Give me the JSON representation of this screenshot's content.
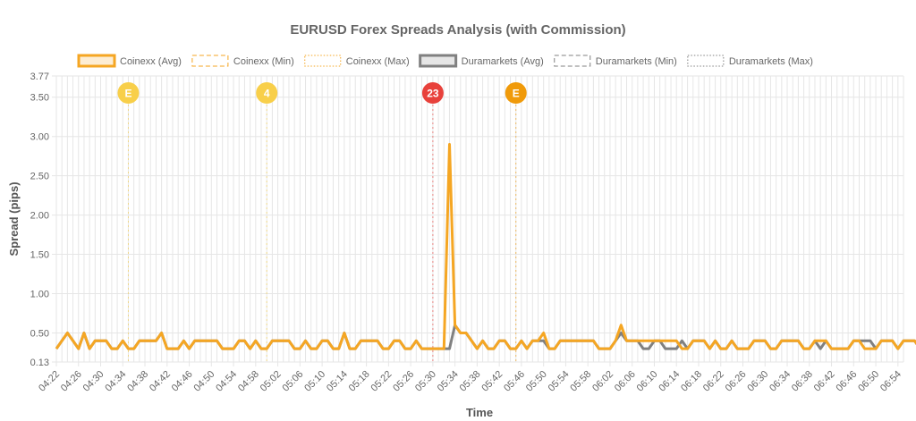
{
  "colors": {
    "coinexx": "#f5a623",
    "duramarkets": "#808080",
    "grid": "#e6e6e6",
    "marker_yellow": "#f8cf4a",
    "marker_red": "#e8413b",
    "marker_orange": "#f09a0a"
  },
  "chart_data": {
    "type": "line",
    "title": "EURUSD Forex Spreads Analysis (with Commission)",
    "xlabel": "Time",
    "ylabel": "Spread (pips)",
    "ylim": [
      0.13,
      3.77
    ],
    "yticks": [
      "0.13",
      "0.50",
      "1.00",
      "1.50",
      "2.00",
      "2.50",
      "3.00",
      "3.50",
      "3.77"
    ],
    "ytick_values": [
      0.13,
      0.5,
      1.0,
      1.5,
      2.0,
      2.5,
      3.0,
      3.5,
      3.77
    ],
    "x_start": "04:22",
    "x_end": "06:55",
    "x_step_minutes": 1,
    "xtick_labels": [
      "04:22",
      "04:26",
      "04:30",
      "04:34",
      "04:38",
      "04:42",
      "04:46",
      "04:50",
      "04:54",
      "04:58",
      "05:02",
      "05:06",
      "05:10",
      "05:14",
      "05:18",
      "05:22",
      "05:26",
      "05:30",
      "05:34",
      "05:38",
      "05:42",
      "05:46",
      "05:50",
      "05:54",
      "05:58",
      "06:02",
      "06:06",
      "06:10",
      "06:14",
      "06:18",
      "06:22",
      "06:26",
      "06:30",
      "06:34",
      "06:38",
      "06:42",
      "06:46",
      "06:50",
      "06:54"
    ],
    "legend": [
      {
        "label": "Coinexx (Avg)",
        "style": "solid",
        "color": "#f5a623"
      },
      {
        "label": "Coinexx (Min)",
        "style": "dashed",
        "color": "#f5a623"
      },
      {
        "label": "Coinexx (Max)",
        "style": "dotted",
        "color": "#f5a623"
      },
      {
        "label": "Duramarkets (Avg)",
        "style": "solid",
        "color": "#808080"
      },
      {
        "label": "Duramarkets (Min)",
        "style": "dashed",
        "color": "#808080"
      },
      {
        "label": "Duramarkets (Max)",
        "style": "dotted",
        "color": "#808080"
      }
    ],
    "series": [
      {
        "name": "Coinexx (Avg)",
        "values": [
          0.3,
          0.4,
          0.5,
          0.4,
          0.3,
          0.5,
          0.3,
          0.4,
          0.4,
          0.4,
          0.3,
          0.3,
          0.4,
          0.3,
          0.3,
          0.4,
          0.4,
          0.4,
          0.4,
          0.5,
          0.3,
          0.3,
          0.3,
          0.4,
          0.3,
          0.4,
          0.4,
          0.4,
          0.4,
          0.4,
          0.3,
          0.3,
          0.3,
          0.4,
          0.4,
          0.3,
          0.4,
          0.3,
          0.3,
          0.4,
          0.4,
          0.4,
          0.4,
          0.3,
          0.3,
          0.4,
          0.3,
          0.3,
          0.4,
          0.4,
          0.3,
          0.3,
          0.5,
          0.3,
          0.3,
          0.4,
          0.4,
          0.4,
          0.4,
          0.3,
          0.3,
          0.4,
          0.4,
          0.3,
          0.3,
          0.4,
          0.3,
          0.3,
          0.3,
          0.3,
          0.3,
          2.9,
          0.6,
          0.5,
          0.5,
          0.4,
          0.3,
          0.4,
          0.3,
          0.3,
          0.4,
          0.4,
          0.3,
          0.3,
          0.4,
          0.3,
          0.4,
          0.4,
          0.5,
          0.3,
          0.3,
          0.4,
          0.4,
          0.4,
          0.4,
          0.4,
          0.4,
          0.4,
          0.3,
          0.3,
          0.3,
          0.4,
          0.6,
          0.4,
          0.4,
          0.4,
          0.4,
          0.4,
          0.4,
          0.4,
          0.4,
          0.4,
          0.4,
          0.3,
          0.3,
          0.4,
          0.4,
          0.4,
          0.3,
          0.4,
          0.3,
          0.3,
          0.4,
          0.3,
          0.3,
          0.3,
          0.4,
          0.4,
          0.4,
          0.3,
          0.3,
          0.4,
          0.4,
          0.4,
          0.4,
          0.3,
          0.3,
          0.4,
          0.4,
          0.4,
          0.3,
          0.3,
          0.3,
          0.3,
          0.4,
          0.4,
          0.3,
          0.3,
          0.3,
          0.4,
          0.4,
          0.4,
          0.3,
          0.4,
          0.4,
          0.4,
          0.3,
          0.4,
          0.3,
          0.3,
          0.3
        ]
      },
      {
        "name": "Duramarkets (Avg)",
        "values": [
          0.3,
          0.4,
          0.5,
          0.4,
          0.3,
          0.5,
          0.3,
          0.4,
          0.4,
          0.4,
          0.3,
          0.3,
          0.4,
          0.3,
          0.3,
          0.4,
          0.4,
          0.4,
          0.4,
          0.5,
          0.3,
          0.3,
          0.3,
          0.4,
          0.3,
          0.4,
          0.4,
          0.4,
          0.4,
          0.4,
          0.3,
          0.3,
          0.3,
          0.4,
          0.4,
          0.3,
          0.4,
          0.3,
          0.3,
          0.4,
          0.4,
          0.4,
          0.4,
          0.3,
          0.3,
          0.4,
          0.3,
          0.3,
          0.4,
          0.4,
          0.3,
          0.3,
          0.5,
          0.3,
          0.3,
          0.4,
          0.4,
          0.4,
          0.4,
          0.3,
          0.3,
          0.4,
          0.4,
          0.3,
          0.3,
          0.4,
          0.3,
          0.3,
          0.3,
          0.3,
          0.3,
          0.3,
          0.6,
          0.5,
          0.5,
          0.4,
          0.3,
          0.4,
          0.3,
          0.3,
          0.4,
          0.4,
          0.3,
          0.3,
          0.4,
          0.3,
          0.4,
          0.4,
          0.4,
          0.3,
          0.3,
          0.4,
          0.4,
          0.4,
          0.4,
          0.4,
          0.4,
          0.4,
          0.3,
          0.3,
          0.3,
          0.4,
          0.5,
          0.4,
          0.4,
          0.4,
          0.3,
          0.3,
          0.4,
          0.4,
          0.3,
          0.3,
          0.3,
          0.4,
          0.3,
          0.4,
          0.4,
          0.4,
          0.3,
          0.4,
          0.3,
          0.3,
          0.4,
          0.3,
          0.3,
          0.3,
          0.4,
          0.4,
          0.4,
          0.3,
          0.3,
          0.4,
          0.4,
          0.4,
          0.4,
          0.3,
          0.3,
          0.4,
          0.3,
          0.4,
          0.3,
          0.3,
          0.3,
          0.3,
          0.4,
          0.4,
          0.4,
          0.4,
          0.3,
          0.4,
          0.4,
          0.4,
          0.3,
          0.4,
          0.4,
          0.4,
          0.3,
          0.4,
          0.3,
          0.3,
          0.3
        ]
      }
    ],
    "events": [
      {
        "time": "04:35",
        "label": "E",
        "color": "#f8cf4a"
      },
      {
        "time": "05:00",
        "label": "4",
        "color": "#f8cf4a"
      },
      {
        "time": "05:30",
        "label": "23",
        "color": "#e8413b"
      },
      {
        "time": "05:45",
        "label": "E",
        "color": "#f09a0a"
      }
    ]
  }
}
